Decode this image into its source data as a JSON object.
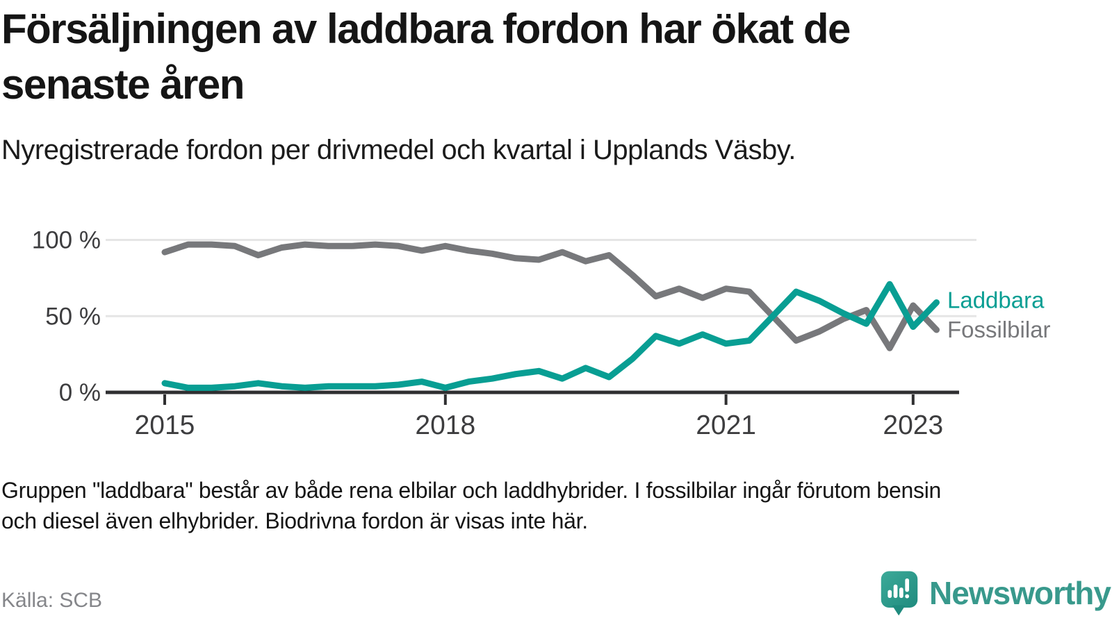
{
  "header": {
    "title_lines": [
      "Försäljningen av laddbara fordon har ökat de",
      "senaste åren"
    ],
    "subtitle": "Nyregistrerade fordon per drivmedel och kvartal i Upplands Väsby."
  },
  "chart_data": {
    "type": "line",
    "unit": "%",
    "x": [
      "2015K1",
      "2015K2",
      "2015K3",
      "2015K4",
      "2016K1",
      "2016K2",
      "2016K3",
      "2016K4",
      "2017K1",
      "2017K2",
      "2017K3",
      "2017K4",
      "2018K1",
      "2018K2",
      "2018K3",
      "2018K4",
      "2019K1",
      "2019K2",
      "2019K3",
      "2019K4",
      "2020K1",
      "2020K2",
      "2020K3",
      "2020K4",
      "2021K1",
      "2021K2",
      "2021K3",
      "2021K4",
      "2022K1",
      "2022K2",
      "2022K3",
      "2022K4",
      "2023K1",
      "2023K2"
    ],
    "series": [
      {
        "name": "Laddbara",
        "color": "#089e93",
        "values": [
          6,
          3,
          3,
          4,
          6,
          4,
          3,
          4,
          4,
          4,
          5,
          7,
          3,
          7,
          9,
          12,
          14,
          9,
          16,
          10,
          22,
          37,
          32,
          38,
          32,
          34,
          50,
          66,
          60,
          52,
          45,
          71,
          43,
          59
        ]
      },
      {
        "name": "Fossilbilar",
        "color": "#77787b",
        "values": [
          92,
          97,
          97,
          96,
          90,
          95,
          97,
          96,
          96,
          97,
          96,
          93,
          96,
          93,
          91,
          88,
          87,
          92,
          86,
          90,
          77,
          63,
          68,
          62,
          68,
          66,
          50,
          34,
          40,
          48,
          54,
          29,
          57,
          41
        ]
      }
    ],
    "ylim": [
      0,
      100
    ],
    "yticks": [
      {
        "value": 100,
        "label": "100 %"
      },
      {
        "value": 50,
        "label": "50 %"
      },
      {
        "value": 0,
        "label": "0 %"
      }
    ],
    "xticks": [
      {
        "index": 0,
        "label": "2015"
      },
      {
        "index": 12,
        "label": "2018"
      },
      {
        "index": 24,
        "label": "2021"
      },
      {
        "index": 32,
        "label": "2023"
      }
    ],
    "grid": "horizontal gridlines at 50 and 100, dark baseline at 0",
    "legend_position": "right of line ends",
    "axis_color": "#2f2f31",
    "gridline_color": "#e5e5e5",
    "tick_label_color": "#3d3d3f"
  },
  "footnote_lines": [
    "Gruppen \"laddbara\" består av både rena elbilar och laddhybrider. I fossilbilar ingår förutom bensin",
    "och diesel även elhybrider. Biodrivna fordon är visas inte här."
  ],
  "source": {
    "label": "Källa: SCB"
  },
  "branding": {
    "wordmark": "Newsworthy",
    "icon": "speech-bubble-bar-chart-icon",
    "wordmark_color": "#38998c",
    "icon_color_top": "#3caa99",
    "icon_color_bottom": "#1f8b7e"
  }
}
